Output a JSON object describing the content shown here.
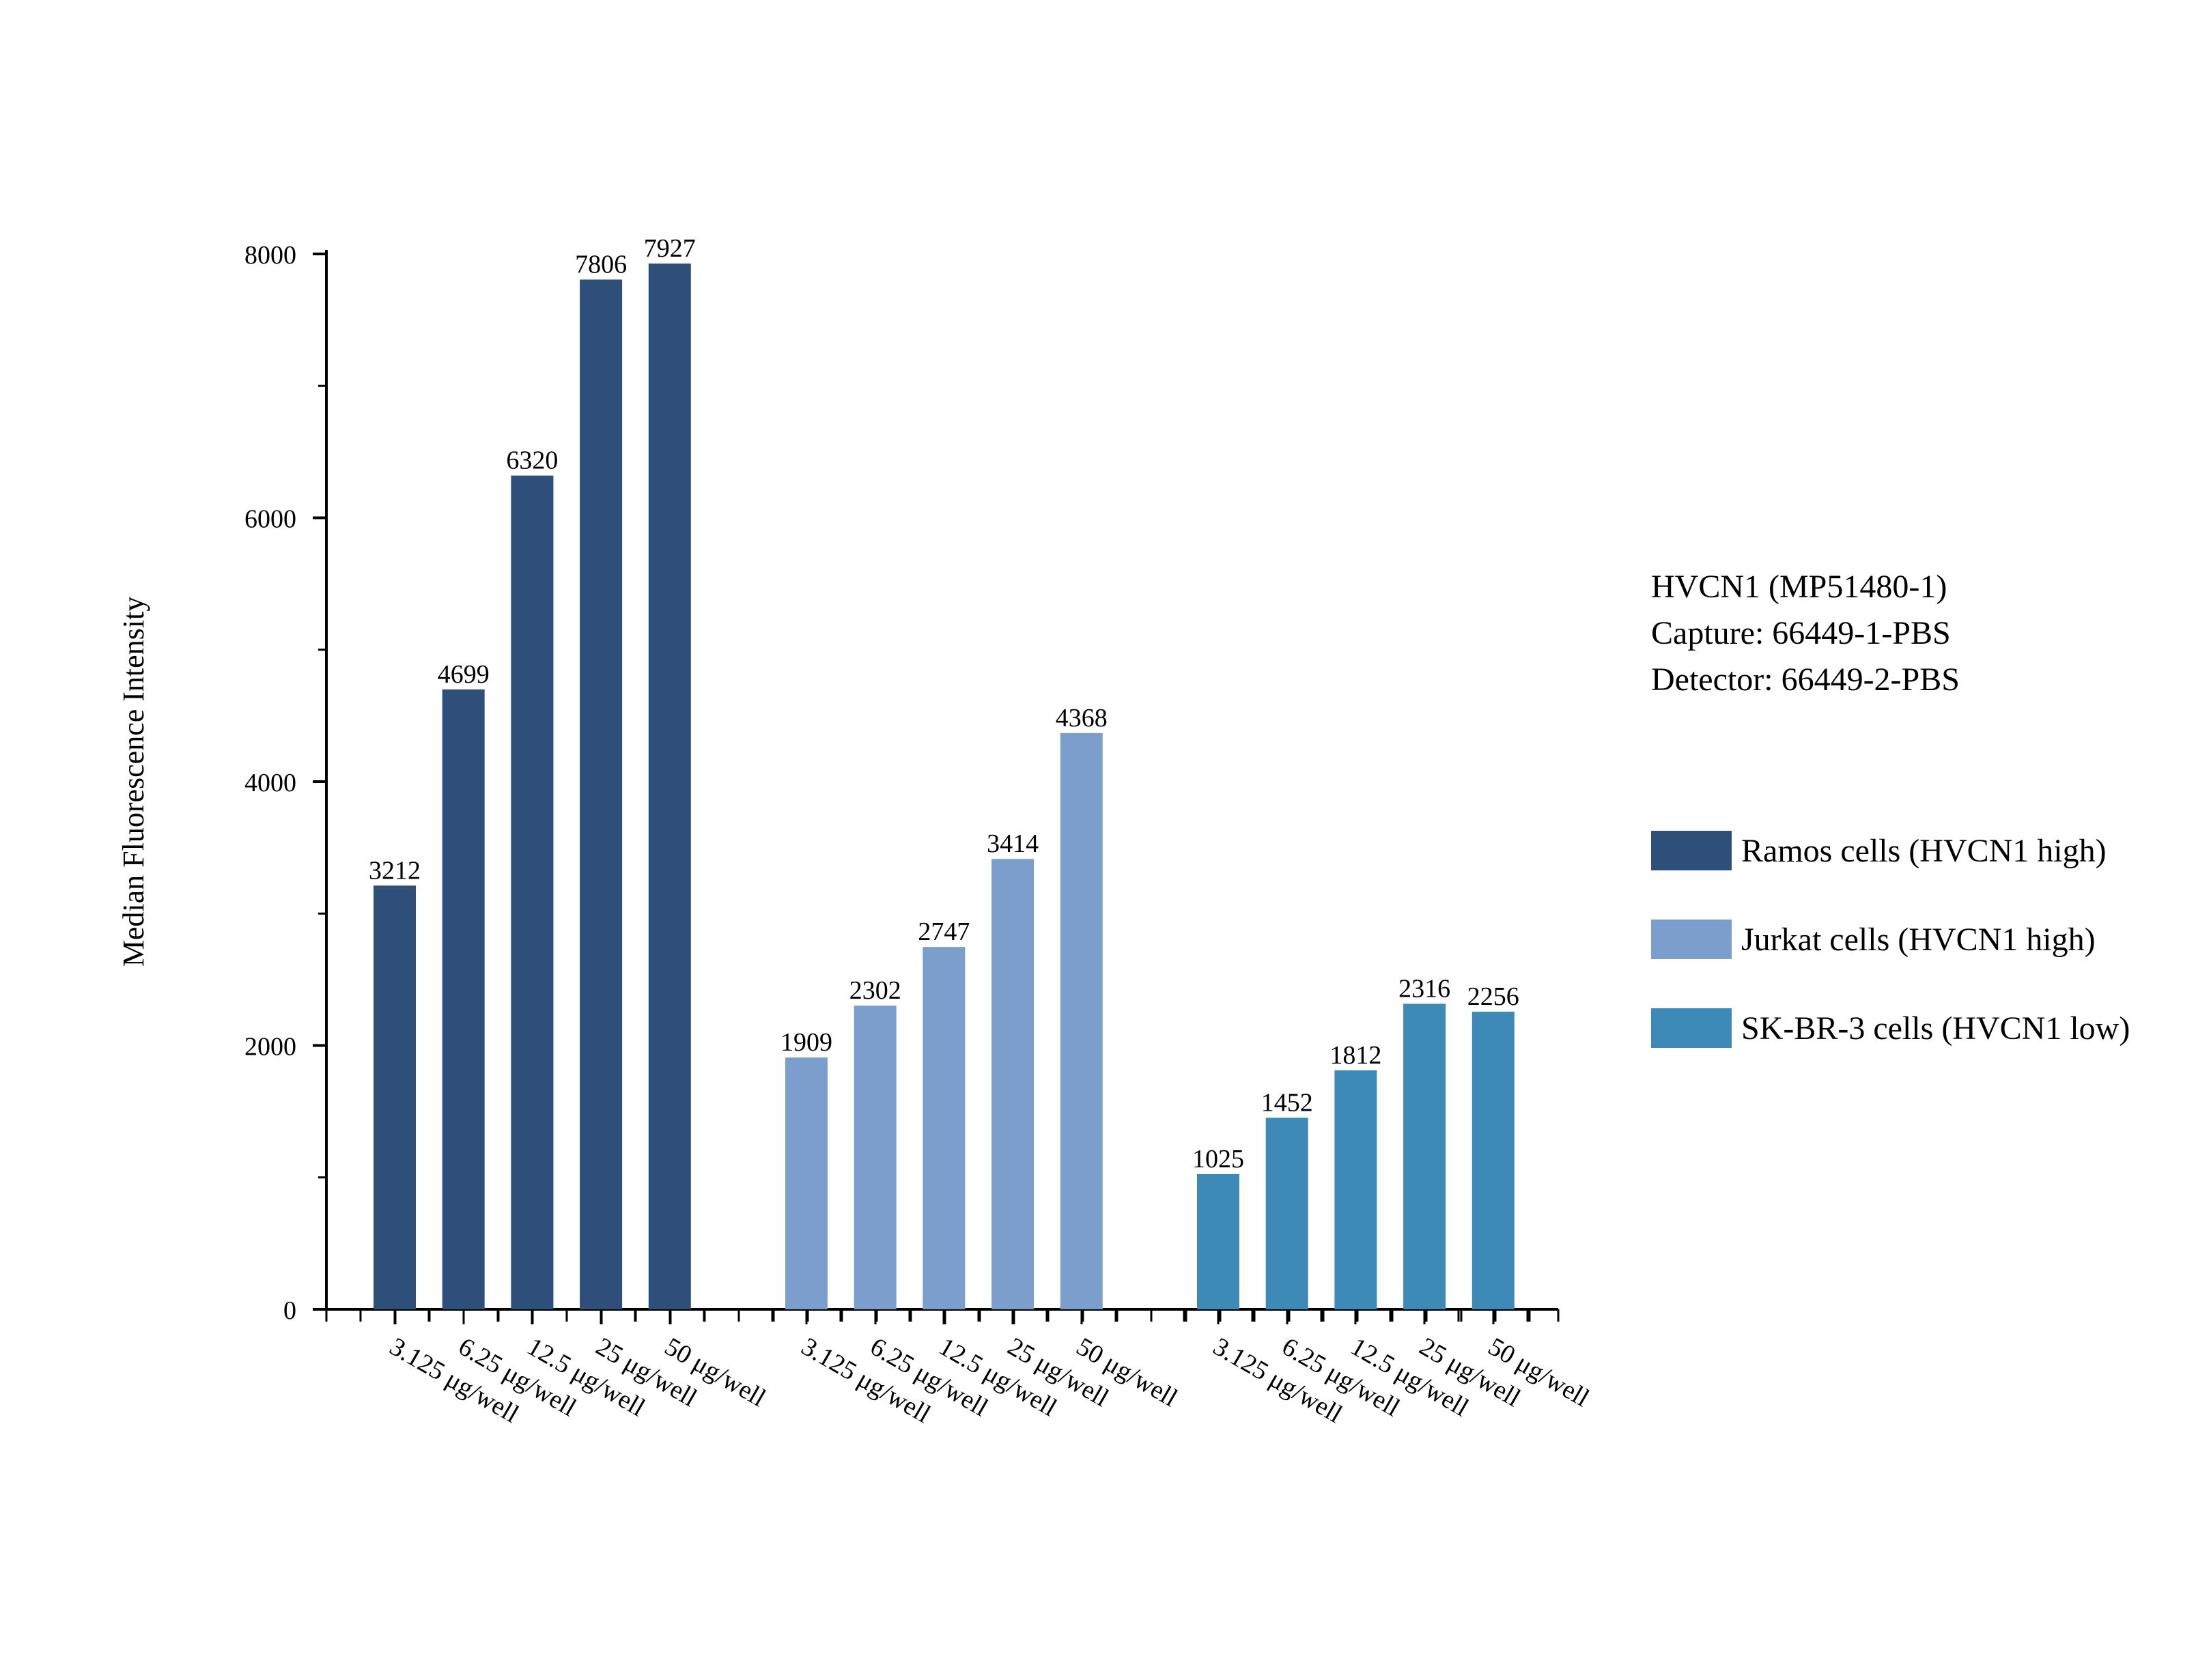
{
  "chart_data": {
    "type": "bar",
    "ylabel": "Median Fluorescence Intensity",
    "xlabel": "",
    "ylim": [
      0,
      8000
    ],
    "yticks": [
      0,
      2000,
      4000,
      6000,
      8000
    ],
    "ytick_labels": [
      "0",
      "2000",
      "4000",
      "6000",
      "8000"
    ],
    "categories": [
      "3.125 μg/well",
      "6.25 μg/well",
      "12.5 μg/well",
      "25 μg/well",
      "50 μg/well"
    ],
    "series": [
      {
        "name": "Ramos cells (HVCN1 high)",
        "color": "#2f4f7b",
        "values": [
          3212,
          4699,
          6320,
          7806,
          7927
        ]
      },
      {
        "name": "Jurkat cells (HVCN1 high)",
        "color": "#7b9ecd",
        "values": [
          1909,
          2302,
          2747,
          3414,
          4368
        ]
      },
      {
        "name": "SK-BR-3 cells (HVCN1 low)",
        "color": "#3d8ab9",
        "values": [
          1025,
          1452,
          1812,
          2316,
          2256
        ]
      }
    ],
    "legend_position": "right",
    "grid": false
  },
  "info": {
    "line1": "HVCN1 (MP51480-1)",
    "line2": "Capture: 66449-1-PBS",
    "line3": "Detector: 66449-2-PBS"
  }
}
